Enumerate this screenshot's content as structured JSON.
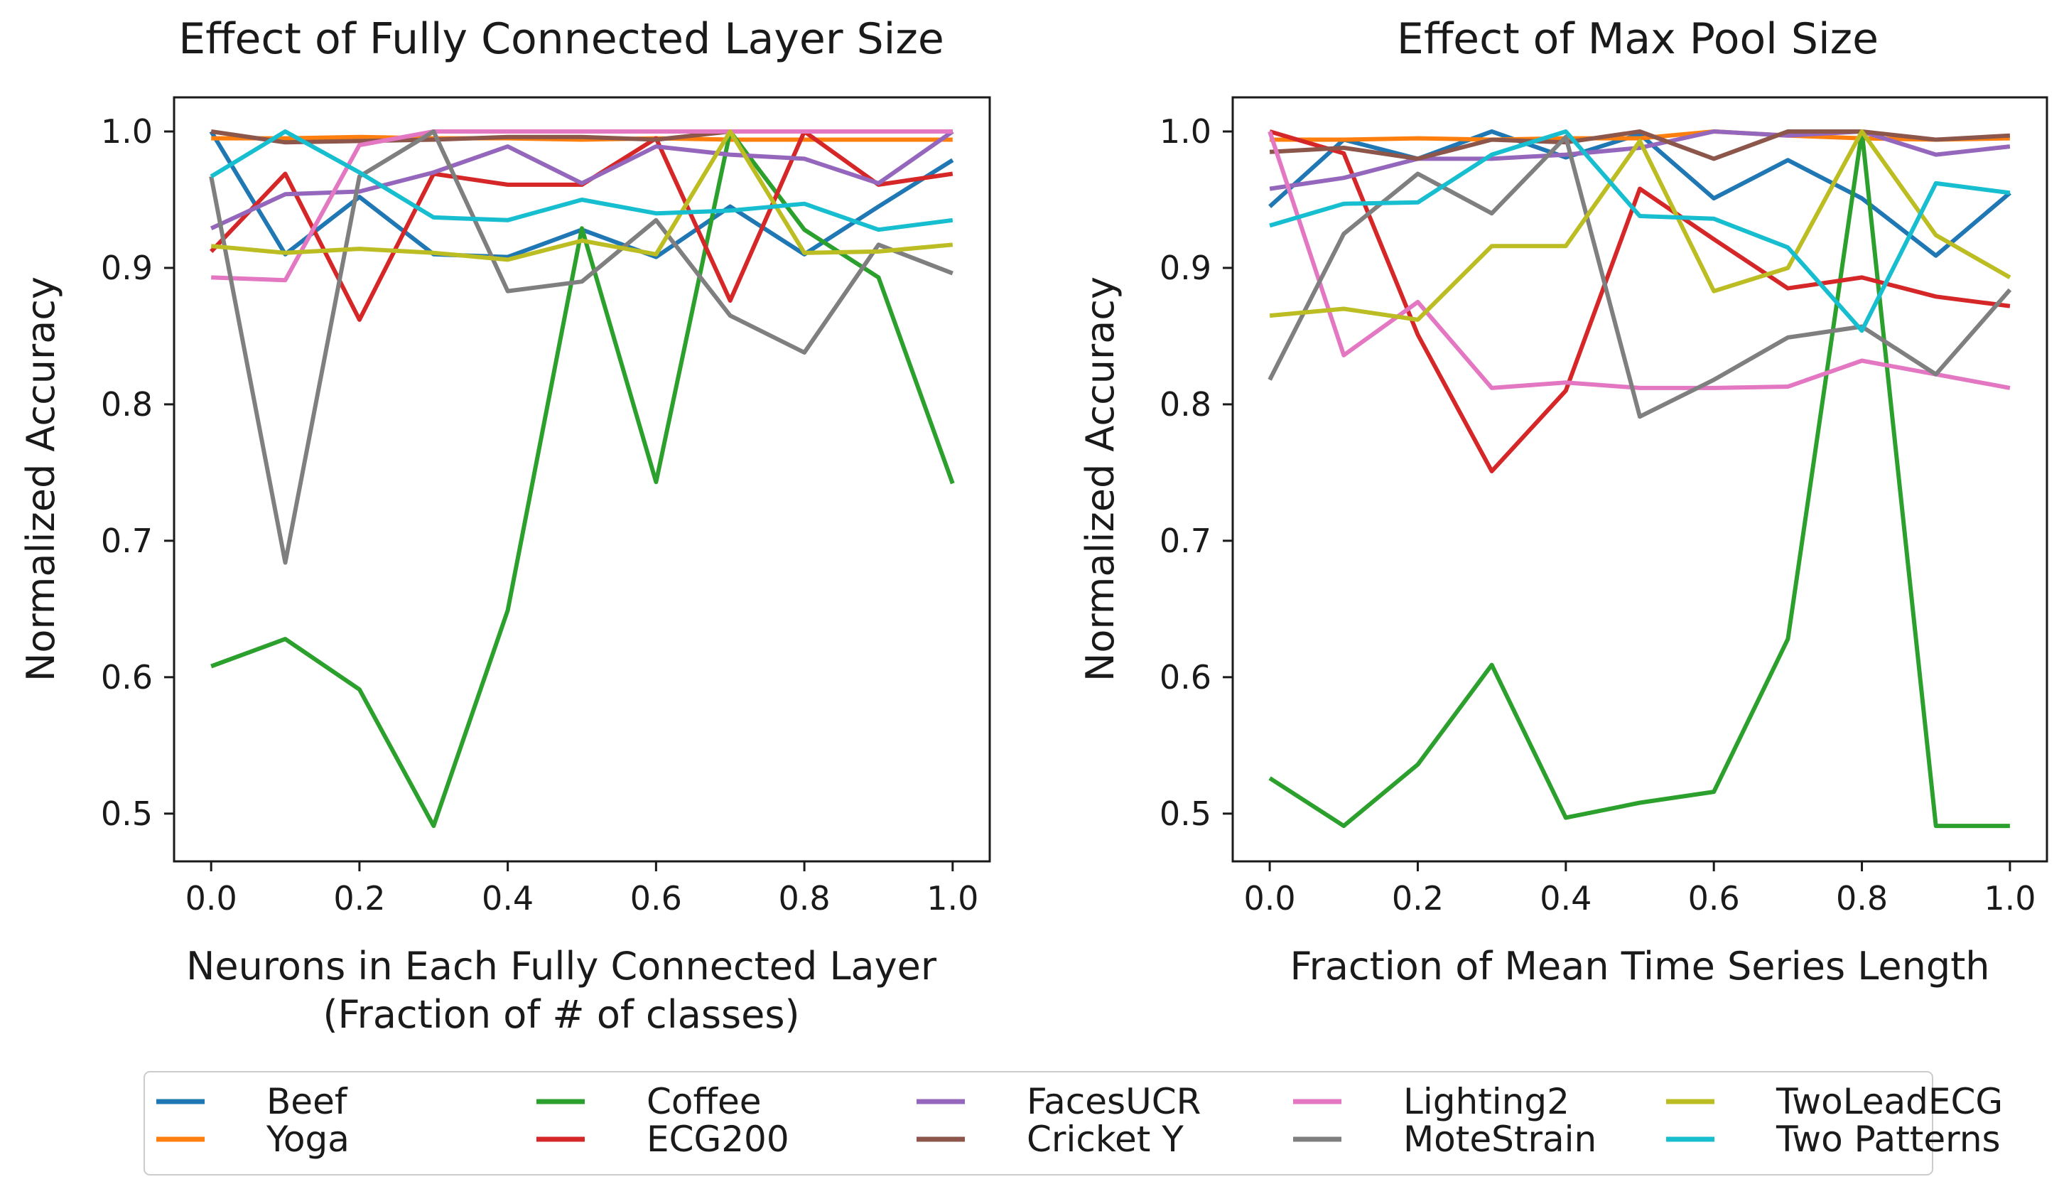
{
  "legend": {
    "entries": [
      {
        "name": "Beef",
        "color": "#1f77b4"
      },
      {
        "name": "Yoga",
        "color": "#ff7f0e"
      },
      {
        "name": "Coffee",
        "color": "#2ca02c"
      },
      {
        "name": "ECG200",
        "color": "#d62728"
      },
      {
        "name": "FacesUCR",
        "color": "#9467bd"
      },
      {
        "name": "Cricket Y",
        "color": "#8c564b"
      },
      {
        "name": "Lighting2",
        "color": "#e377c2"
      },
      {
        "name": "MoteStrain",
        "color": "#7f7f7f"
      },
      {
        "name": "TwoLeadECG",
        "color": "#bcbd22"
      },
      {
        "name": "Two Patterns",
        "color": "#17becf"
      }
    ],
    "placement": "bottom",
    "columns": 5
  },
  "chart_data": [
    {
      "type": "line",
      "title": "Effect of Fully Connected Layer Size",
      "xlabel_lines": [
        "Neurons in Each Fully Connected Layer",
        "(Fraction of # of classes)"
      ],
      "ylabel": "Normalized Accuracy",
      "xlim": [
        -0.05,
        1.05
      ],
      "ylim": [
        0.465,
        1.025
      ],
      "xticks": [
        0.0,
        0.2,
        0.4,
        0.6,
        0.8,
        1.0
      ],
      "xtick_labels": [
        "0.0",
        "0.2",
        "0.4",
        "0.6",
        "0.8",
        "1.0"
      ],
      "yticks": [
        0.5,
        0.6,
        0.7,
        0.8,
        0.9,
        1.0
      ],
      "ytick_labels": [
        "0.5",
        "0.6",
        "0.7",
        "0.8",
        "0.9",
        "1.0"
      ],
      "grid": false,
      "x": [
        0.0,
        0.1,
        0.2,
        0.3,
        0.4,
        0.5,
        0.6,
        0.7,
        0.8,
        0.9,
        1.0
      ],
      "series": [
        {
          "name": "Beef",
          "values": [
            1.0,
            0.91,
            0.952,
            0.91,
            0.908,
            0.928,
            0.908,
            0.945,
            0.91,
            0.945,
            0.979
          ]
        },
        {
          "name": "Yoga",
          "values": [
            0.995,
            0.995,
            0.996,
            0.995,
            0.995,
            0.994,
            0.995,
            0.994,
            0.994,
            0.994,
            0.994
          ]
        },
        {
          "name": "Coffee",
          "values": [
            0.608,
            0.628,
            0.591,
            0.491,
            0.649,
            0.929,
            0.743,
            1.0,
            0.928,
            0.893,
            0.742
          ]
        },
        {
          "name": "ECG200",
          "values": [
            0.912,
            0.969,
            0.862,
            0.969,
            0.961,
            0.961,
            0.995,
            0.876,
            1.0,
            0.961,
            0.969
          ]
        },
        {
          "name": "FacesUCR",
          "values": [
            0.929,
            0.954,
            0.956,
            0.97,
            0.989,
            0.962,
            0.989,
            0.983,
            0.98,
            0.962,
            1.0
          ]
        },
        {
          "name": "Cricket Y",
          "values": [
            1.0,
            0.992,
            0.993,
            0.994,
            0.996,
            0.996,
            0.994,
            1.0,
            1.0,
            1.0,
            1.0
          ]
        },
        {
          "name": "Lighting2",
          "values": [
            0.893,
            0.891,
            0.99,
            1.0,
            1.0,
            1.0,
            1.0,
            1.0,
            1.0,
            1.0,
            1.0
          ]
        },
        {
          "name": "MoteStrain",
          "values": [
            0.967,
            0.684,
            0.967,
            1.0,
            0.883,
            0.89,
            0.935,
            0.865,
            0.838,
            0.917,
            0.896
          ]
        },
        {
          "name": "TwoLeadECG",
          "values": [
            0.916,
            0.911,
            0.914,
            0.911,
            0.906,
            0.92,
            0.91,
            1.0,
            0.911,
            0.912,
            0.917
          ]
        },
        {
          "name": "Two Patterns",
          "values": [
            0.967,
            1.0,
            0.97,
            0.937,
            0.935,
            0.95,
            0.94,
            0.942,
            0.947,
            0.928,
            0.935
          ]
        }
      ]
    },
    {
      "type": "line",
      "title": "Effect of Max Pool Size",
      "xlabel_lines": [
        "Fraction of Mean Time Series Length"
      ],
      "ylabel": "Normalized Accuracy",
      "xlim": [
        -0.05,
        1.05
      ],
      "ylim": [
        0.465,
        1.025
      ],
      "xticks": [
        0.0,
        0.2,
        0.4,
        0.6,
        0.8,
        1.0
      ],
      "xtick_labels": [
        "0.0",
        "0.2",
        "0.4",
        "0.6",
        "0.8",
        "1.0"
      ],
      "yticks": [
        0.5,
        0.6,
        0.7,
        0.8,
        0.9,
        1.0
      ],
      "ytick_labels": [
        "0.5",
        "0.6",
        "0.7",
        "0.8",
        "0.9",
        "1.0"
      ],
      "grid": false,
      "x": [
        0.0,
        0.1,
        0.2,
        0.3,
        0.4,
        0.5,
        0.6,
        0.7,
        0.8,
        0.9,
        1.0
      ],
      "series": [
        {
          "name": "Beef",
          "values": [
            0.945,
            0.994,
            0.98,
            1.0,
            0.981,
            0.998,
            0.951,
            0.979,
            0.951,
            0.909,
            0.955
          ]
        },
        {
          "name": "Yoga",
          "values": [
            0.994,
            0.994,
            0.995,
            0.994,
            0.995,
            0.995,
            1.0,
            0.997,
            0.995,
            0.994,
            0.995
          ]
        },
        {
          "name": "Coffee",
          "values": [
            0.526,
            0.491,
            0.536,
            0.609,
            0.497,
            0.508,
            0.516,
            0.628,
            1.0,
            0.491,
            0.491
          ]
        },
        {
          "name": "ECG200",
          "values": [
            1.0,
            0.984,
            0.851,
            0.751,
            0.81,
            0.958,
            0.921,
            0.885,
            0.893,
            0.879,
            0.872
          ]
        },
        {
          "name": "FacesUCR",
          "values": [
            0.958,
            0.966,
            0.98,
            0.98,
            0.983,
            0.988,
            1.0,
            0.997,
            1.0,
            0.983,
            0.989
          ]
        },
        {
          "name": "Cricket Y",
          "values": [
            0.985,
            0.988,
            0.98,
            0.994,
            0.992,
            1.0,
            0.98,
            1.0,
            1.0,
            0.994,
            0.997
          ]
        },
        {
          "name": "Lighting2",
          "values": [
            1.0,
            0.836,
            0.875,
            0.812,
            0.816,
            0.812,
            0.812,
            0.813,
            0.832,
            0.822,
            0.812
          ]
        },
        {
          "name": "MoteStrain",
          "values": [
            0.818,
            0.925,
            0.969,
            0.94,
            0.996,
            0.791,
            0.818,
            0.849,
            0.857,
            0.822,
            0.884
          ]
        },
        {
          "name": "TwoLeadECG",
          "values": [
            0.865,
            0.87,
            0.862,
            0.916,
            0.916,
            0.993,
            0.883,
            0.9,
            1.0,
            0.924,
            0.893
          ]
        },
        {
          "name": "Two Patterns",
          "values": [
            0.931,
            0.947,
            0.948,
            0.983,
            1.0,
            0.938,
            0.936,
            0.915,
            0.854,
            0.962,
            0.955
          ]
        }
      ]
    }
  ]
}
